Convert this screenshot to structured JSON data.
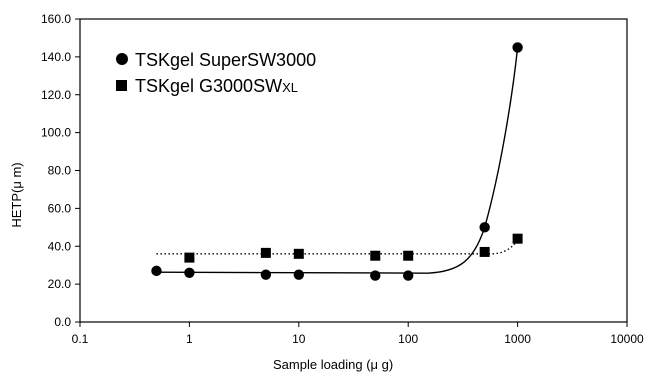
{
  "chart_data": {
    "type": "scatter",
    "title": "",
    "xlabel": "Sample loading (μ g)",
    "ylabel": "HETP(μ m)",
    "x_scale": "log",
    "xlim": [
      0.1,
      10000
    ],
    "ylim": [
      0,
      160
    ],
    "x_ticks": [
      "0.1",
      "1",
      "10",
      "100",
      "1000",
      "10000"
    ],
    "y_ticks": [
      "0.0",
      "20.0",
      "40.0",
      "60.0",
      "80.0",
      "100.0",
      "120.0",
      "140.0",
      "160.0"
    ],
    "grid": false,
    "legend_position": "top-left",
    "series": [
      {
        "name": "TSKgel SuperSW3000",
        "marker": "circle",
        "line": "solid",
        "x": [
          0.5,
          1,
          5,
          10,
          50,
          100,
          500,
          1000
        ],
        "y": [
          27,
          26,
          25,
          25,
          24.5,
          24.5,
          50,
          145
        ]
      },
      {
        "name": "TSKgel G3000SW",
        "name_subscript": "XL",
        "marker": "square",
        "line": "dotted",
        "x": [
          1,
          5,
          10,
          50,
          100,
          500,
          1000
        ],
        "y": [
          34,
          36.5,
          36,
          35,
          35,
          37,
          44
        ]
      }
    ]
  }
}
